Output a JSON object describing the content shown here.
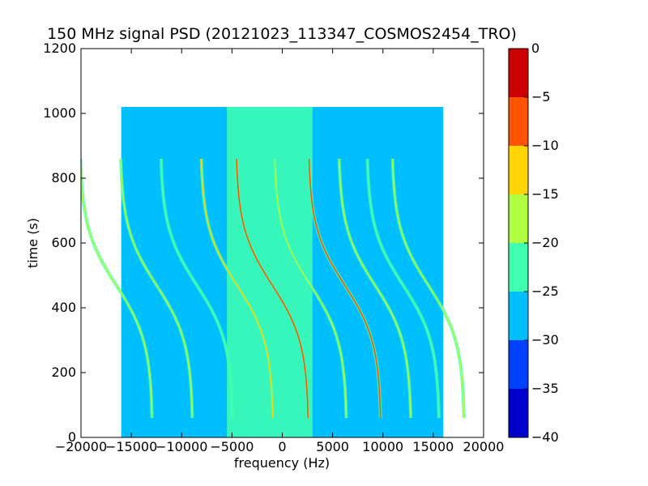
{
  "chart_data": {
    "type": "heatmap",
    "title": "150 MHz signal PSD (20121023_113347_COSMOS2454_TRO)",
    "xlabel": "frequency (Hz)",
    "ylabel": "time (s)",
    "xlim": [
      -20000,
      20000
    ],
    "ylim": [
      0,
      1200
    ],
    "data_extent": {
      "x": [
        -16000,
        16000
      ],
      "y": [
        0,
        1020
      ]
    },
    "x_ticks": [
      -20000,
      -15000,
      -10000,
      -5000,
      0,
      5000,
      10000,
      15000,
      20000
    ],
    "x_tick_labels": [
      "−20000",
      "−15000",
      "−10000",
      "−5000",
      "0",
      "5000",
      "10000",
      "15000",
      "20000"
    ],
    "y_ticks": [
      0,
      200,
      400,
      600,
      800,
      1000,
      1200
    ],
    "y_tick_labels": [
      "0",
      "200",
      "400",
      "600",
      "800",
      "1000",
      "1200"
    ],
    "background_level": -27.5,
    "center_band": {
      "x_range": [
        -5500,
        3000
      ],
      "level": -22.5
    },
    "traces": [
      {
        "center_freq": -1000,
        "center_time": 470,
        "span": 3300,
        "half_time": 390,
        "level": -7.5
      },
      {
        "center_freq": 6200,
        "center_time": 470,
        "span": 3300,
        "half_time": 390,
        "level": -7.5
      },
      {
        "center_freq": -4500,
        "center_time": 470,
        "span": 3300,
        "half_time": 390,
        "level": -12.5
      },
      {
        "center_freq": 2800,
        "center_time": 470,
        "span": 3300,
        "half_time": 390,
        "level": -17.5
      },
      {
        "center_freq": 9200,
        "center_time": 470,
        "span": 3300,
        "half_time": 390,
        "level": -17.5
      },
      {
        "center_freq": -12500,
        "center_time": 470,
        "span": 3300,
        "half_time": 390,
        "level": -17.5
      },
      {
        "center_freq": 14500,
        "center_time": 470,
        "span": 3300,
        "half_time": 390,
        "level": -17.5
      },
      {
        "center_freq": -8500,
        "center_time": 470,
        "span": 3300,
        "half_time": 390,
        "level": -22.5
      },
      {
        "center_freq": 12000,
        "center_time": 470,
        "span": 3300,
        "half_time": 390,
        "level": -22.5
      },
      {
        "center_freq": -16500,
        "center_time": 470,
        "span": 3300,
        "half_time": 390,
        "level": -17.5
      }
    ],
    "colorbar": {
      "range": [
        -40,
        0
      ],
      "ticks": [
        0,
        -5,
        -10,
        -15,
        -20,
        -25,
        -30,
        -35,
        -40
      ],
      "tick_labels": [
        "0",
        "−5",
        "−10",
        "−15",
        "−20",
        "−25",
        "−30",
        "−35",
        "−40"
      ],
      "bins": [
        {
          "from": -40,
          "to": -35,
          "color": "#0000cc"
        },
        {
          "from": -35,
          "to": -30,
          "color": "#0040ff"
        },
        {
          "from": -30,
          "to": -25,
          "color": "#00bfff"
        },
        {
          "from": -25,
          "to": -20,
          "color": "#40ffb0"
        },
        {
          "from": -20,
          "to": -15,
          "color": "#b0ff40"
        },
        {
          "from": -15,
          "to": -10,
          "color": "#ffd400"
        },
        {
          "from": -10,
          "to": -5,
          "color": "#ff5500"
        },
        {
          "from": -5,
          "to": 0,
          "color": "#cc0000"
        }
      ]
    }
  }
}
